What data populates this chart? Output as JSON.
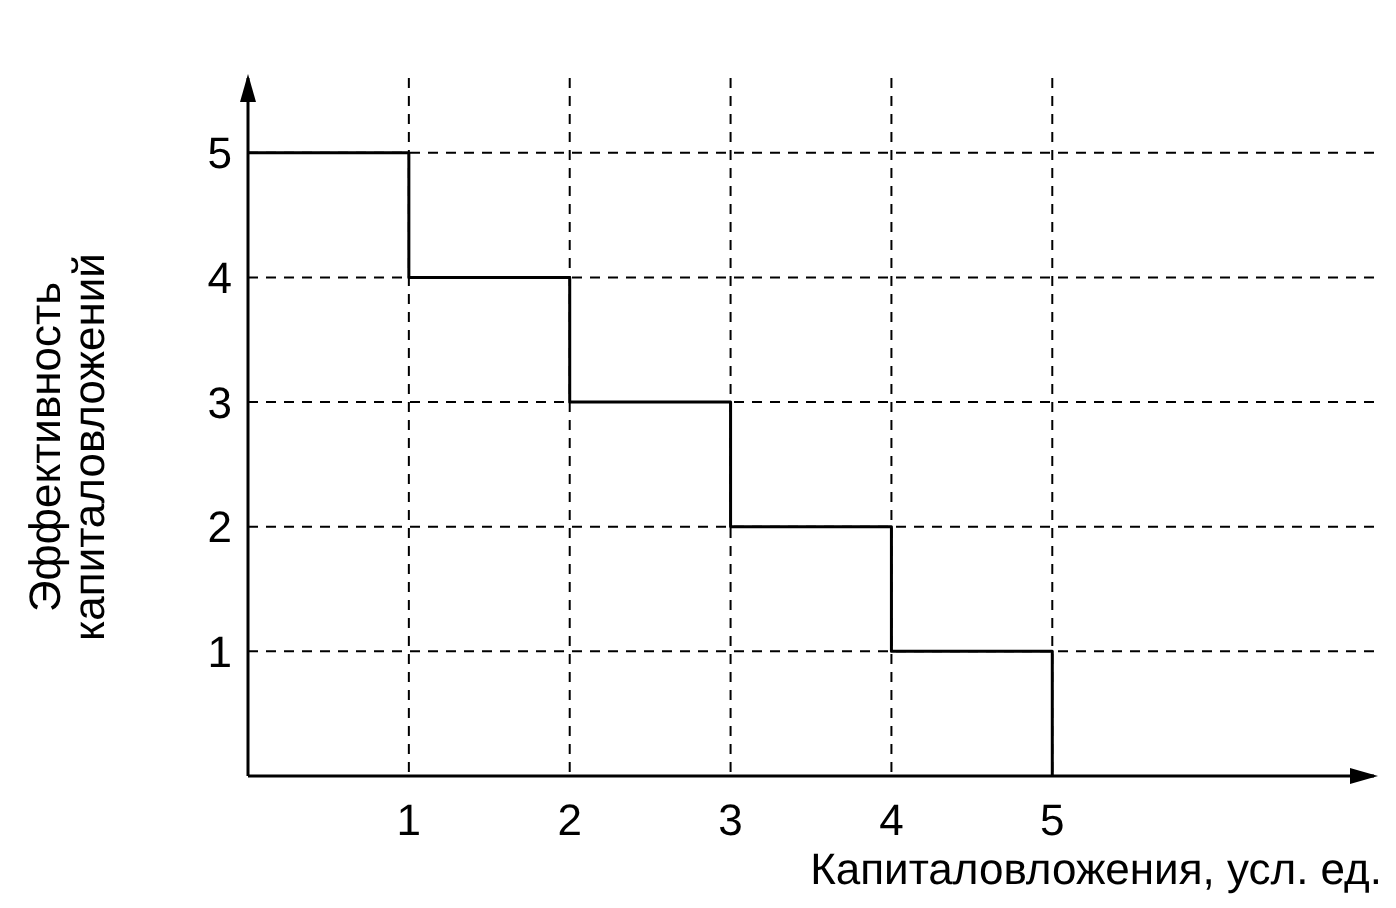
{
  "chart_data": {
    "type": "step",
    "x": [
      0,
      1,
      2,
      3,
      4,
      5
    ],
    "values": [
      5,
      4,
      3,
      2,
      1,
      0
    ],
    "color": "#000000",
    "xlabel": "Капиталовложения, усл. ед.",
    "ylabel": "Эффективность капиталовложений",
    "xlim": [
      0,
      7
    ],
    "ylim": [
      0,
      5.6
    ],
    "xticks": [
      1,
      2,
      3,
      4,
      5
    ],
    "yticks": [
      1,
      2,
      3,
      4,
      5
    ],
    "grid": true,
    "line_style": "solid",
    "marker": "none",
    "legend": false
  }
}
